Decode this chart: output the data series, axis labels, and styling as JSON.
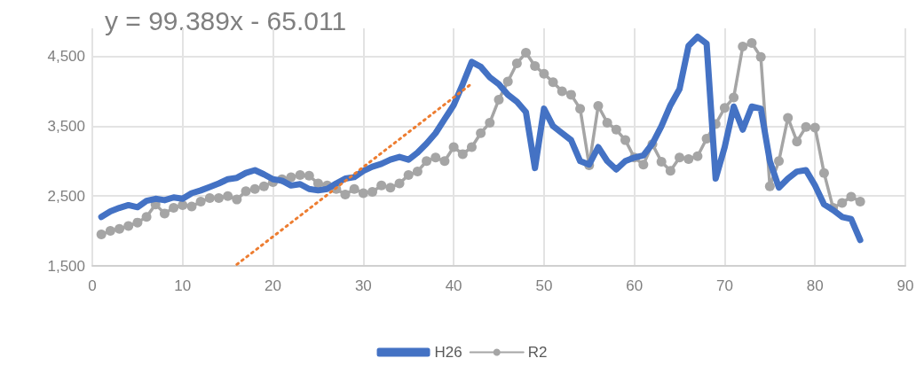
{
  "chart_data": {
    "type": "line",
    "x": [
      1,
      2,
      3,
      4,
      5,
      6,
      7,
      8,
      9,
      10,
      11,
      12,
      13,
      14,
      15,
      16,
      17,
      18,
      19,
      20,
      21,
      22,
      23,
      24,
      25,
      26,
      27,
      28,
      29,
      30,
      31,
      32,
      33,
      34,
      35,
      36,
      37,
      38,
      39,
      40,
      41,
      42,
      43,
      44,
      45,
      46,
      47,
      48,
      49,
      50,
      51,
      52,
      53,
      54,
      55,
      56,
      57,
      58,
      59,
      60,
      61,
      62,
      63,
      64,
      65,
      66,
      67,
      68,
      69,
      70,
      71,
      72,
      73,
      74,
      75,
      76,
      77,
      78,
      79,
      80,
      81,
      82,
      83,
      84,
      85
    ],
    "series": [
      {
        "name": "H26",
        "color": "#4472c4",
        "marker": "none",
        "values": [
          2200,
          2280,
          2330,
          2370,
          2340,
          2430,
          2460,
          2440,
          2480,
          2460,
          2540,
          2580,
          2630,
          2680,
          2740,
          2760,
          2830,
          2870,
          2810,
          2740,
          2720,
          2650,
          2670,
          2600,
          2580,
          2600,
          2680,
          2750,
          2770,
          2860,
          2920,
          2960,
          3020,
          3060,
          3020,
          3120,
          3250,
          3400,
          3600,
          3800,
          4100,
          4420,
          4350,
          4200,
          4100,
          3950,
          3850,
          3700,
          2900,
          3750,
          3500,
          3400,
          3300,
          3000,
          2950,
          3200,
          3000,
          2880,
          3000,
          3050,
          3080,
          3250,
          3500,
          3800,
          4030,
          4650,
          4780,
          4680,
          2750,
          3200,
          3780,
          3450,
          3780,
          3750,
          3000,
          2620,
          2750,
          2850,
          2870,
          2650,
          2380,
          2300,
          2200,
          2170,
          1870
        ]
      },
      {
        "name": "R2",
        "color": "#a5a5a5",
        "marker": "circle",
        "values": [
          1950,
          2000,
          2030,
          2070,
          2120,
          2200,
          2380,
          2250,
          2330,
          2370,
          2350,
          2420,
          2470,
          2470,
          2500,
          2450,
          2570,
          2600,
          2640,
          2700,
          2740,
          2770,
          2800,
          2790,
          2680,
          2650,
          2600,
          2520,
          2600,
          2540,
          2560,
          2650,
          2620,
          2680,
          2800,
          2850,
          3000,
          3050,
          3000,
          3200,
          3100,
          3200,
          3400,
          3550,
          3880,
          4140,
          4400,
          4550,
          4360,
          4250,
          4130,
          4000,
          3950,
          3750,
          2940,
          3790,
          3550,
          3450,
          3300,
          3050,
          2950,
          3240,
          2990,
          2860,
          3050,
          3030,
          3070,
          3320,
          3530,
          3760,
          3910,
          4640,
          4690,
          4490,
          2640,
          3000,
          3620,
          3280,
          3490,
          3480,
          2830,
          2330,
          2400,
          2490,
          2420
        ]
      },
      {
        "type": "line",
        "color": "#ed7d31",
        "marker": "none",
        "line_style": "dotted",
        "x": [
          16,
          42
        ],
        "values": [
          1520,
          4110
        ]
      }
    ],
    "xlim": [
      0,
      90
    ],
    "xticks": [
      0,
      10,
      20,
      30,
      40,
      50,
      60,
      70,
      80,
      90
    ],
    "ylim": [
      1500,
      4900
    ],
    "yticks": [
      {
        "value": 1500,
        "label": "1,500"
      },
      {
        "value": 2500,
        "label": "2,500"
      },
      {
        "value": 3500,
        "label": "3,500"
      },
      {
        "value": 4500,
        "label": "4,500"
      }
    ],
    "grid": true,
    "legend": "bottom",
    "annotations": [
      "y = 99.389x - 65.011"
    ]
  }
}
